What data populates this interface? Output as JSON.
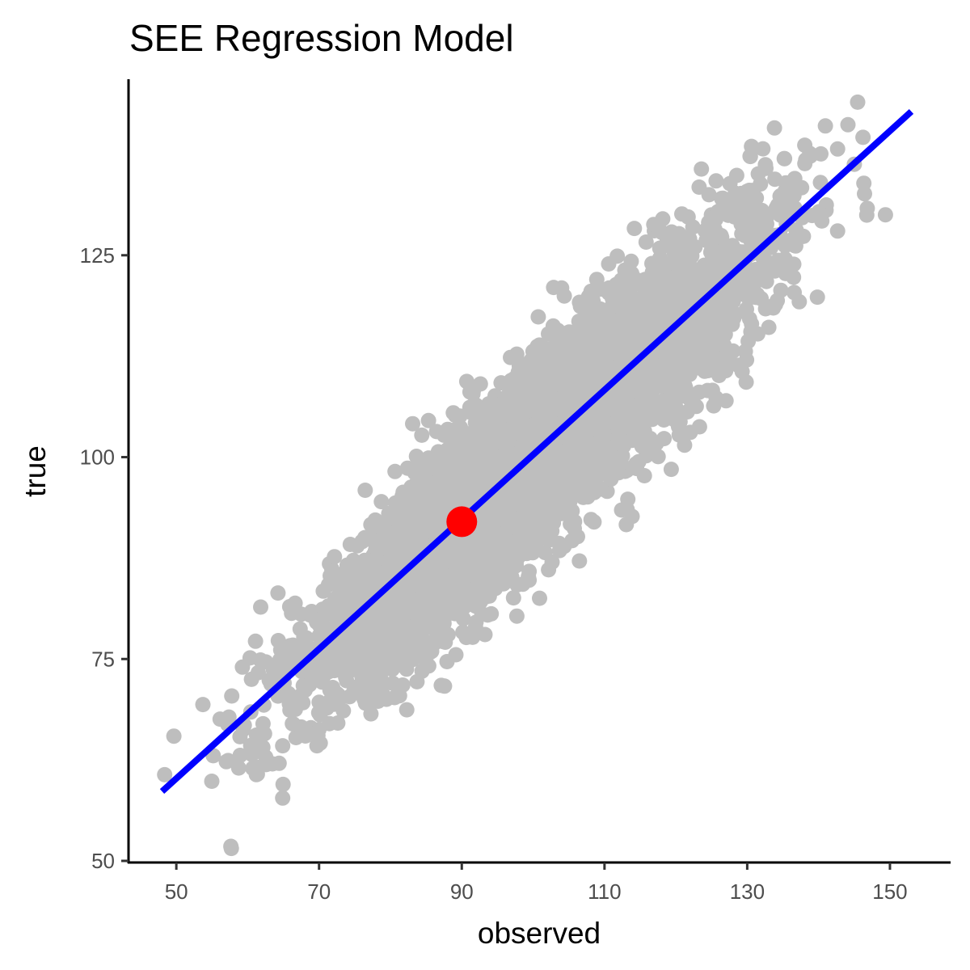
{
  "chart_data": {
    "type": "scatter",
    "title": "SEE Regression Model",
    "xlabel": "observed",
    "ylabel": "true",
    "xlim": [
      43.3,
      158.5
    ],
    "ylim": [
      49.8,
      146.8
    ],
    "x_ticks": [
      50,
      70,
      90,
      110,
      130,
      150
    ],
    "y_ticks": [
      50,
      75,
      100,
      125
    ],
    "grid": false,
    "legend": "none",
    "point_color": "#bebebe",
    "line_color": "#0000ff",
    "highlight_color": "#ff0000",
    "scatter_cloud": {
      "n_points": 6000,
      "x_mean": 100,
      "x_sd": 15,
      "slope": 0.82,
      "intercept": 18,
      "residual_sd": 5.5,
      "seed": 7
    },
    "regression_line": {
      "x": [
        48,
        153
      ],
      "y": [
        58.6,
        142.8
      ]
    },
    "highlight_point": {
      "x": 90,
      "y": 92
    }
  }
}
